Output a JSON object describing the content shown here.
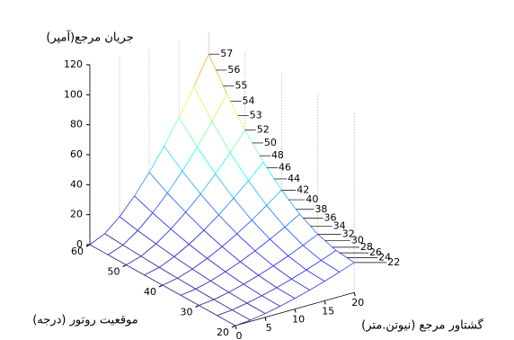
{
  "chart_data": {
    "type": "surface",
    "title": "جریان مرجع(آمپر)",
    "xlabel": "گشتاور مرجع (نیوتن.متر)",
    "ylabel": "موقعیت روتور (درجه)",
    "x": [
      0,
      2.5,
      5,
      7.5,
      10,
      12.5,
      15,
      17.5,
      20
    ],
    "y": [
      20,
      25,
      30,
      35,
      40,
      45,
      50,
      55,
      60
    ],
    "z": [
      [
        0,
        0.9,
        2.5,
        4.6,
        7.1,
        9.9,
        13.0,
        16.4,
        20.0
      ],
      [
        0,
        0.9,
        2.7,
        4.9,
        7.5,
        10.5,
        13.8,
        17.4,
        21.3
      ],
      [
        0,
        1.1,
        3.2,
        5.8,
        9.0,
        12.5,
        16.4,
        20.7,
        25.3
      ],
      [
        0,
        1.4,
        4.0,
        7.4,
        11.3,
        15.8,
        20.8,
        26.2,
        32.0
      ],
      [
        0,
        1.8,
        5.2,
        9.5,
        14.6,
        20.4,
        26.8,
        33.8,
        41.3
      ],
      [
        0,
        2.3,
        6.7,
        12.2,
        18.8,
        26.3,
        34.6,
        43.6,
        53.2
      ],
      [
        0,
        3.0,
        8.5,
        15.6,
        24.0,
        33.5,
        44.1,
        55.5,
        67.8
      ],
      [
        0,
        3.7,
        10.6,
        19.6,
        30.1,
        42.0,
        55.3,
        69.7,
        85.1
      ],
      [
        0,
        4.6,
        13.1,
        24.2,
        37.2,
        51.9,
        68.3,
        86.0,
        105.0
      ]
    ],
    "xlim": [
      0,
      20
    ],
    "ylim": [
      20,
      60
    ],
    "zlim": [
      0,
      120
    ],
    "xticks": [
      0,
      5,
      10,
      15,
      20
    ],
    "yticks": [
      20,
      30,
      40,
      50,
      60
    ],
    "zticks": [
      0,
      20,
      40,
      60,
      80,
      100,
      120
    ],
    "colormap": "jet",
    "edge_labels": [
      57,
      56,
      55,
      54,
      53,
      52,
      50,
      48,
      46,
      44,
      42,
      40,
      38,
      36,
      34,
      32,
      30,
      28,
      26,
      24,
      22
    ]
  }
}
